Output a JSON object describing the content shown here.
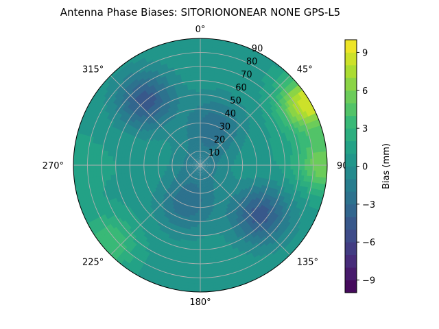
{
  "chart_data": {
    "type": "polar-contour",
    "title": "Antenna Phase Biases: SITORIONONEAR   NONE GPS-L5",
    "azimuth_labels": [
      "0°",
      "45°",
      "90°",
      "135°",
      "180°",
      "225°",
      "270°",
      "315°"
    ],
    "zenith_ticks": [
      "10",
      "20",
      "30",
      "40",
      "50",
      "60",
      "70",
      "80",
      "90"
    ],
    "zenith_range": [
      0,
      90
    ],
    "colorbar": {
      "label": "Bias (mm)",
      "range": [
        -10,
        10
      ],
      "levels": 20,
      "ticks": [
        "−9",
        "−6",
        "−3",
        "0",
        "3",
        "6",
        "9"
      ],
      "colormap": "viridis"
    },
    "features": [
      {
        "azimuth": 60,
        "zenith": 88,
        "bias": 9
      },
      {
        "azimuth": 90,
        "zenith": 88,
        "bias": 6
      },
      {
        "azimuth": 230,
        "zenith": 85,
        "bias": 4
      },
      {
        "azimuth": 270,
        "zenith": 88,
        "bias": 2
      },
      {
        "azimuth": 320,
        "zenith": 60,
        "bias": -4.5
      },
      {
        "azimuth": 130,
        "zenith": 55,
        "bias": -4.5
      },
      {
        "azimuth": 20,
        "zenith": 30,
        "bias": -2.5
      },
      {
        "azimuth": 200,
        "zenith": 30,
        "bias": -2.5
      },
      {
        "azimuth": 90,
        "zenith": 40,
        "bias": 1
      },
      {
        "azimuth": 270,
        "zenith": 45,
        "bias": 1
      },
      {
        "azimuth": 0,
        "zenith": 0,
        "bias": -1
      }
    ],
    "grid": true
  }
}
